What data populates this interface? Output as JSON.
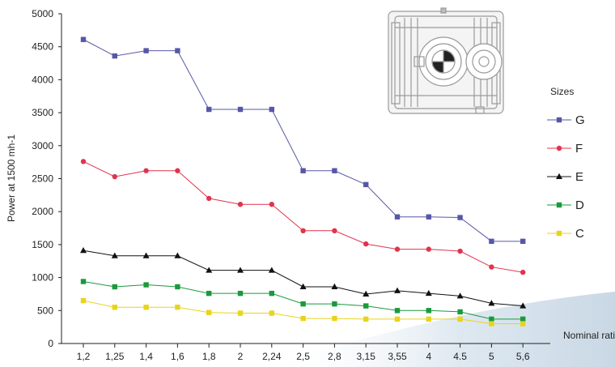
{
  "chart_data": {
    "type": "line",
    "title": "",
    "xlabel": "Nominal ratio",
    "ylabel": "Power at 1500 mh-1",
    "categories": [
      "1,2",
      "1,25",
      "1,4",
      "1,6",
      "1,8",
      "2",
      "2,24",
      "2,5",
      "2,8",
      "3,15",
      "3,55",
      "4",
      "4.5",
      "5",
      "5,6"
    ],
    "ylim": [
      0,
      5000
    ],
    "yticks": [
      0,
      500,
      1000,
      1500,
      2000,
      2500,
      3000,
      3500,
      4000,
      4500,
      5000
    ],
    "grid": false,
    "legend": {
      "title": "Sizes",
      "placement": "right"
    },
    "series": [
      {
        "name": "G",
        "color": "#5757a8",
        "marker": "square",
        "values": [
          4610,
          4360,
          4440,
          4440,
          3550,
          3550,
          3550,
          2620,
          2620,
          2410,
          1920,
          1920,
          1910,
          1550,
          1550
        ]
      },
      {
        "name": "F",
        "color": "#e0344d",
        "marker": "circle",
        "values": [
          2760,
          2530,
          2620,
          2620,
          2200,
          2110,
          2110,
          1710,
          1710,
          1510,
          1430,
          1430,
          1400,
          1160,
          1080
        ]
      },
      {
        "name": "E",
        "color": "#111111",
        "marker": "triangle",
        "values": [
          1410,
          1330,
          1330,
          1330,
          1110,
          1110,
          1110,
          860,
          860,
          750,
          800,
          760,
          720,
          610,
          570
        ]
      },
      {
        "name": "D",
        "color": "#1a9a3c",
        "marker": "square",
        "values": [
          940,
          860,
          890,
          860,
          760,
          760,
          760,
          600,
          600,
          570,
          500,
          500,
          480,
          370,
          370
        ]
      },
      {
        "name": "C",
        "color": "#e8d41c",
        "marker": "square",
        "values": [
          650,
          550,
          550,
          550,
          470,
          460,
          460,
          380,
          380,
          370,
          370,
          370,
          370,
          300,
          300
        ]
      }
    ]
  }
}
